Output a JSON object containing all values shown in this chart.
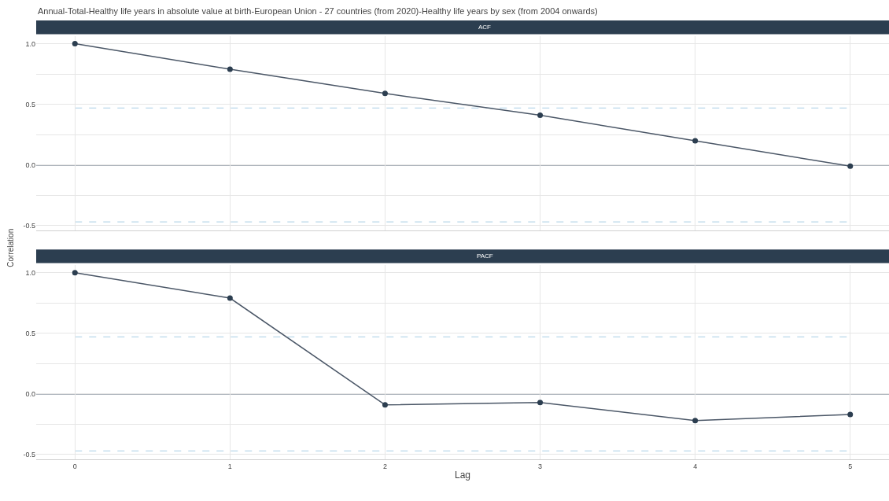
{
  "chart_data": [
    {
      "type": "line",
      "title": "Annual-Total-Healthy life years in absolute value at birth-European Union - 27 countries (from 2020)-Healthy life years by sex (from 2004 onwards)",
      "subtitle": "ACF",
      "ylabel": "Correlation",
      "x": [
        0,
        1,
        2,
        3,
        4,
        5
      ],
      "series": [
        {
          "color": "#4b5767",
          "values": [
            1.0,
            0.79,
            0.59,
            0.41,
            0.2,
            -0.01
          ]
        }
      ],
      "xlim": [
        -0.25,
        5.25
      ],
      "xticks": [
        0,
        1,
        2,
        3,
        4,
        5
      ],
      "ylim": [
        -0.54,
        1.06
      ],
      "yticks": [
        {
          "value": -0.5,
          "label": "-0.5"
        },
        {
          "value": -0.25,
          "label": null
        },
        {
          "value": 0,
          "label": "0.0"
        },
        {
          "value": 0.25,
          "label": null
        },
        {
          "value": 0.5,
          "label": "0.5"
        },
        {
          "value": 0.75,
          "label": null
        },
        {
          "value": 1,
          "label": "1.0"
        }
      ],
      "ref_lines": [
        {
          "axis": "y",
          "value": 0,
          "color": "#5f6b7a",
          "line_style": "solid"
        },
        {
          "axis": "y",
          "value": 0.47,
          "color": "#b9d7ea",
          "line_style": "dashed"
        },
        {
          "axis": "y",
          "value": -0.47,
          "color": "#b9d7ea",
          "line_style": "dashed"
        }
      ],
      "grid": true,
      "marker": "circle",
      "line_style": "solid",
      "tick_labels": "y"
    },
    {
      "type": "line",
      "subtitle": "PACF",
      "xlabel": "Lag",
      "x": [
        0,
        1,
        2,
        3,
        4,
        5
      ],
      "series": [
        {
          "color": "#4b5767",
          "values": [
            1.0,
            0.79,
            -0.09,
            -0.07,
            -0.22,
            -0.17
          ]
        }
      ],
      "xlim": [
        -0.25,
        5.25
      ],
      "xticks": [
        0,
        1,
        2,
        3,
        4,
        5
      ],
      "ylim": [
        -0.54,
        1.06
      ],
      "yticks": [
        {
          "value": -0.5,
          "label": "-0.5"
        },
        {
          "value": -0.25,
          "label": null
        },
        {
          "value": 0,
          "label": "0.0"
        },
        {
          "value": 0.25,
          "label": null
        },
        {
          "value": 0.5,
          "label": "0.5"
        },
        {
          "value": 0.75,
          "label": null
        },
        {
          "value": 1,
          "label": "1.0"
        }
      ],
      "ref_lines": [
        {
          "axis": "y",
          "value": 0,
          "color": "#5f6b7a",
          "line_style": "solid"
        },
        {
          "axis": "y",
          "value": 0.47,
          "color": "#b9d7ea",
          "line_style": "dashed"
        },
        {
          "axis": "y",
          "value": -0.47,
          "color": "#b9d7ea",
          "line_style": "dashed"
        }
      ],
      "grid": true,
      "marker": "circle",
      "line_style": "solid"
    }
  ]
}
